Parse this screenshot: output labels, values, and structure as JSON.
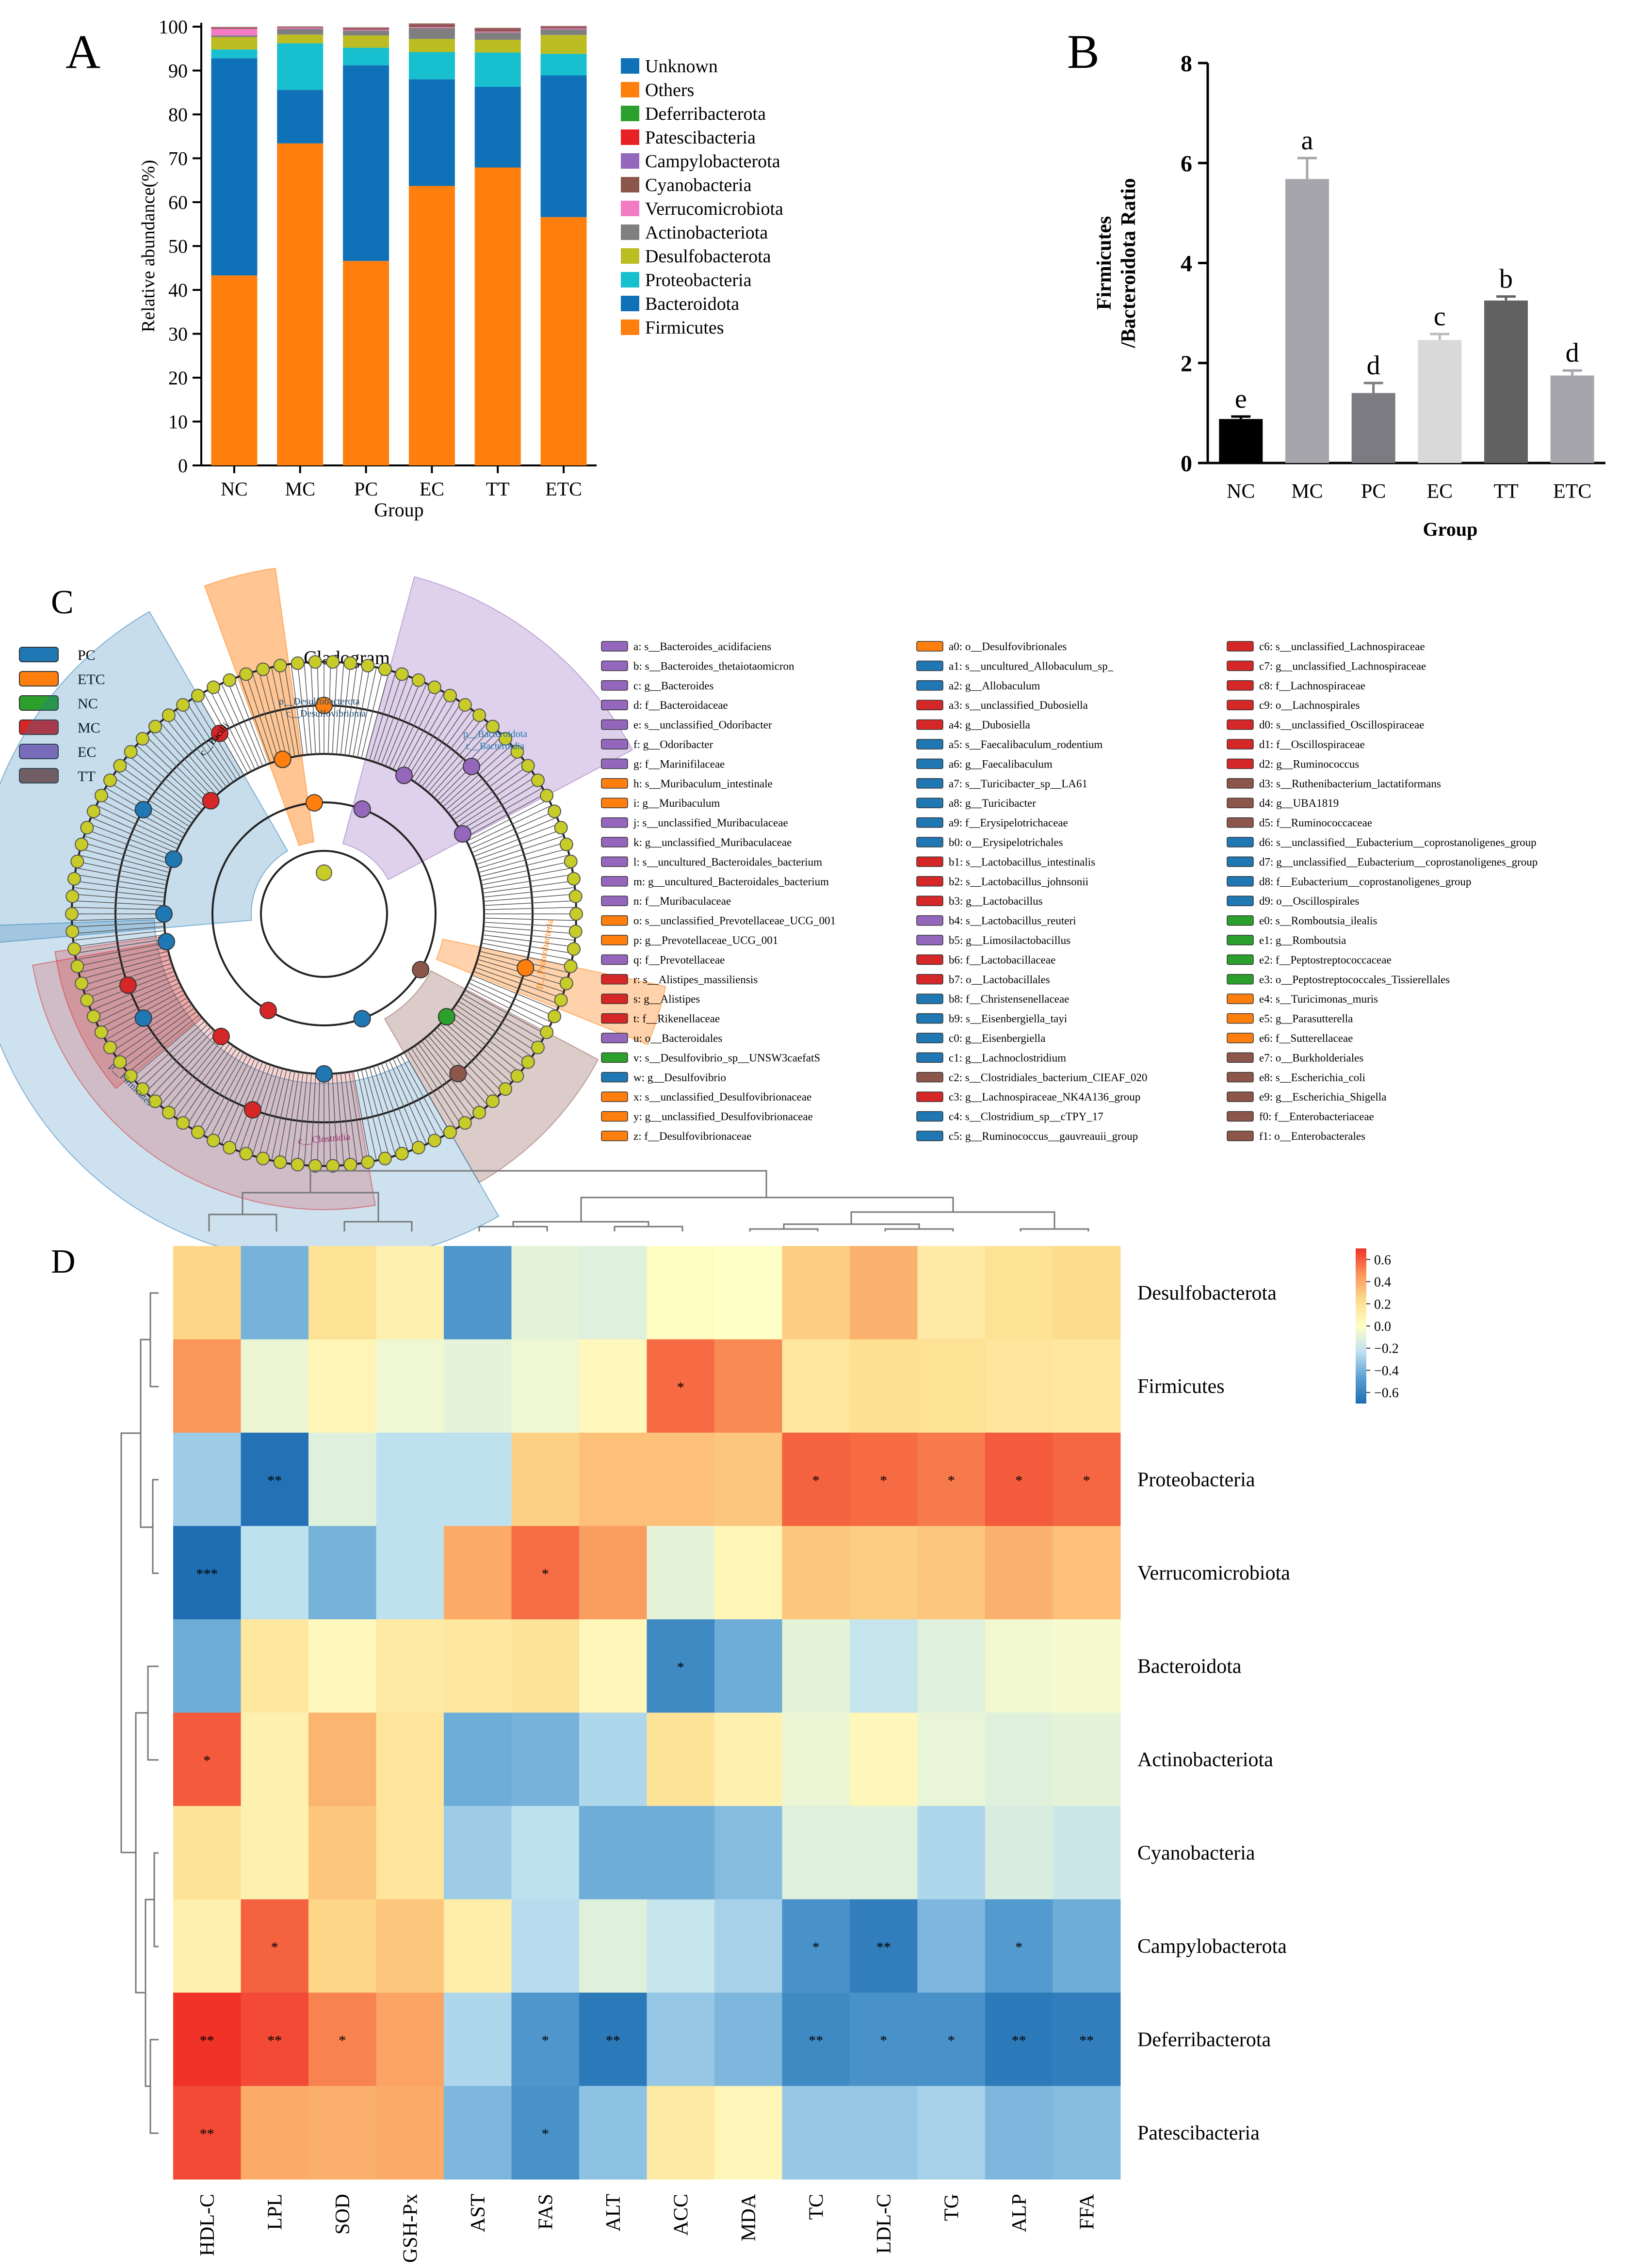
{
  "panels": {
    "A": "A",
    "B": "B",
    "C": "C",
    "D": "D"
  },
  "chart_data": [
    {
      "panel": "A",
      "type": "bar",
      "stacked": true,
      "xlabel": "Group",
      "ylabel": "Relative abundance(%)",
      "ylim": [
        0,
        100
      ],
      "yticks": [
        0,
        10,
        20,
        30,
        40,
        50,
        60,
        70,
        80,
        90,
        100
      ],
      "categories": [
        "NC",
        "MC",
        "PC",
        "EC",
        "TT",
        "ETC"
      ],
      "legend_position": "right",
      "series": [
        {
          "name": "Firmicutes",
          "color": "#ff7f0e",
          "values": [
            43.3,
            73.4,
            46.6,
            63.7,
            67.9,
            56.6
          ]
        },
        {
          "name": "Bacteroidota",
          "color": "#0f72b8",
          "values": [
            49.5,
            12.2,
            44.6,
            24.3,
            18.4,
            32.3
          ]
        },
        {
          "name": "Proteobacteria",
          "color": "#17bfcf",
          "values": [
            2.0,
            10.6,
            4.0,
            6.2,
            7.8,
            4.9
          ]
        },
        {
          "name": "Desulfobacterota",
          "color": "#bcbd22",
          "values": [
            2.8,
            2.0,
            2.8,
            3.0,
            2.9,
            4.3
          ]
        },
        {
          "name": "Actinobacteriota",
          "color": "#7f7f7f",
          "values": [
            0.4,
            1.3,
            1.1,
            2.5,
            1.7,
            1.3
          ]
        },
        {
          "name": "Verrucomicrobiota",
          "color": "#f27bc4",
          "values": [
            1.5,
            0.2,
            0.2,
            0.2,
            0.2,
            0.2
          ]
        },
        {
          "name": "Cyanobacteria",
          "color": "#8c564b",
          "values": [
            0.2,
            0.1,
            0.3,
            0.6,
            0.6,
            0.3
          ]
        },
        {
          "name": "Campylobacterota",
          "color": "#9467bd",
          "values": [
            0.1,
            0.1,
            0.1,
            0.1,
            0.1,
            0.1
          ]
        },
        {
          "name": "Patescibacteria",
          "color": "#e82127",
          "values": [
            0.1,
            0.1,
            0.1,
            0.1,
            0.1,
            0.1
          ]
        },
        {
          "name": "Deferribacterota",
          "color": "#2ca02c",
          "values": [
            0.05,
            0.05,
            0.05,
            0.05,
            0.05,
            0.05
          ]
        },
        {
          "name": "Others",
          "color": "#ff7f0e",
          "values": [
            0.0,
            0.0,
            0.0,
            0.0,
            0.0,
            0.0
          ]
        },
        {
          "name": "Unknown",
          "color": "#0f72b8",
          "values": [
            0.0,
            0.0,
            0.0,
            0.0,
            0.0,
            0.0
          ]
        }
      ],
      "legend_order": [
        "Unknown",
        "Others",
        "Deferribacterota",
        "Patescibacteria",
        "Campylobacterota",
        "Cyanobacteria",
        "Verrucomicrobiota",
        "Actinobacteriota",
        "Desulfobacterota",
        "Proteobacteria",
        "Bacteroidota",
        "Firmicutes"
      ]
    },
    {
      "panel": "B",
      "type": "bar",
      "xlabel": "Group",
      "ylabel_lines": [
        "Firmicutes",
        "/Bacteroidota Ratio"
      ],
      "ylim": [
        0,
        8
      ],
      "yticks": [
        0,
        2,
        4,
        6,
        8
      ],
      "categories": [
        "NC",
        "MC",
        "PC",
        "EC",
        "TT",
        "ETC"
      ],
      "values": [
        0.88,
        5.68,
        1.4,
        2.46,
        3.25,
        1.75
      ],
      "errors": [
        0.05,
        0.42,
        0.2,
        0.12,
        0.08,
        0.1
      ],
      "letters": [
        "e",
        "a",
        "d",
        "c",
        "b",
        "d"
      ],
      "colors": [
        "#000000",
        "#a5a5ab",
        "#7b7b81",
        "#d9d9d9",
        "#616161",
        "#a5a5ab"
      ]
    },
    {
      "panel": "C",
      "type": "cladogram",
      "title": "Cladogram",
      "groups": [
        {
          "name": "PC",
          "color": "#1f77b4"
        },
        {
          "name": "ETC",
          "color": "#ff7f0e"
        },
        {
          "name": "NC",
          "color": "#2ca02c"
        },
        {
          "name": "MC",
          "color": "#d62728"
        },
        {
          "name": "EC",
          "color": "#9467bd"
        },
        {
          "name": "TT",
          "color": "#8c564b"
        }
      ],
      "arc_labels": [
        "p__Desulfobacterota",
        "c__Desulfovibrionia",
        "p__Bacteroidota",
        "c__Bacteroidia",
        "c__Bacilli",
        "p__Firmicutes",
        "c__Clostridia",
        "p__Proteobacteria"
      ],
      "features": [
        [
          "a: s__Bacteroides_acidifaciens",
          "EC"
        ],
        [
          "b: s__Bacteroides_thetaiotaomicron",
          "EC"
        ],
        [
          "c: g__Bacteroides",
          "EC"
        ],
        [
          "d: f__Bacteroidaceae",
          "EC"
        ],
        [
          "e: s__unclassified_Odoribacter",
          "EC"
        ],
        [
          "f: g__Odoribacter",
          "EC"
        ],
        [
          "g: f__Marinifilaceae",
          "EC"
        ],
        [
          "h: s__Muribaculum_intestinale",
          "ETC"
        ],
        [
          "i: g__Muribaculum",
          "ETC"
        ],
        [
          "j: s__unclassified_Muribaculaceae",
          "EC"
        ],
        [
          "k: g__unclassified_Muribaculaceae",
          "EC"
        ],
        [
          "l: s__uncultured_Bacteroidales_bacterium",
          "EC"
        ],
        [
          "m: g__uncultured_Bacteroidales_bacterium",
          "EC"
        ],
        [
          "n: f__Muribaculaceae",
          "EC"
        ],
        [
          "o: s__unclassified_Prevotellaceae_UCG_001",
          "ETC"
        ],
        [
          "p: g__Prevotellaceae_UCG_001",
          "ETC"
        ],
        [
          "q: f__Prevotellaceae",
          "EC"
        ],
        [
          "r: s__Alistipes_massiliensis",
          "MC"
        ],
        [
          "s: g__Alistipes",
          "MC"
        ],
        [
          "t: f__Rikenellaceae",
          "MC"
        ],
        [
          "u: o__Bacteroidales",
          "EC"
        ],
        [
          "v: s__Desulfovibrio_sp__UNSW3caefatS",
          "NC"
        ],
        [
          "w: g__Desulfovibrio",
          "PC"
        ],
        [
          "x: s__unclassified_Desulfovibrionaceae",
          "ETC"
        ],
        [
          "y: g__unclassified_Desulfovibrionaceae",
          "ETC"
        ],
        [
          "z: f__Desulfovibrionaceae",
          "ETC"
        ],
        [
          "a0: o__Desulfovibrionales",
          "ETC"
        ],
        [
          "a1: s__uncultured_Allobaculum_sp_",
          "PC"
        ],
        [
          "a2: g__Allobaculum",
          "PC"
        ],
        [
          "a3: s__unclassified_Dubosiella",
          "MC"
        ],
        [
          "a4: g__Dubosiella",
          "MC"
        ],
        [
          "a5: s__Faecalibaculum_rodentium",
          "PC"
        ],
        [
          "a6: g__Faecalibaculum",
          "PC"
        ],
        [
          "a7: s__Turicibacter_sp__LA61",
          "PC"
        ],
        [
          "a8: g__Turicibacter",
          "PC"
        ],
        [
          "a9: f__Erysipelotrichaceae",
          "PC"
        ],
        [
          "b0: o__Erysipelotrichales",
          "PC"
        ],
        [
          "b1: s__Lactobacillus_intestinalis",
          "MC"
        ],
        [
          "b2: s__Lactobacillus_johnsonii",
          "MC"
        ],
        [
          "b3: g__Lactobacillus",
          "MC"
        ],
        [
          "b4: s__Lactobacillus_reuteri",
          "EC"
        ],
        [
          "b5: g__Limosilactobacillus",
          "EC"
        ],
        [
          "b6: f__Lactobacillaceae",
          "MC"
        ],
        [
          "b7: o__Lactobacillales",
          "MC"
        ],
        [
          "b8: f__Christensenellaceae",
          "PC"
        ],
        [
          "b9: s__Eisenbergiella_tayi",
          "PC"
        ],
        [
          "c0: g__Eisenbergiella",
          "PC"
        ],
        [
          "c1: g__Lachnoclostridium",
          "PC"
        ],
        [
          "c2: s__Clostridiales_bacterium_CIEAF_020",
          "TT"
        ],
        [
          "c3: g__Lachnospiraceae_NK4A136_group",
          "MC"
        ],
        [
          "c4: s__Clostridium_sp__cTPY_17",
          "PC"
        ],
        [
          "c5: g__Ruminococcus__gauvreauii_group",
          "PC"
        ],
        [
          "c6: s__unclassified_Lachnospiraceae",
          "MC"
        ],
        [
          "c7: g__unclassified_Lachnospiraceae",
          "MC"
        ],
        [
          "c8: f__Lachnospiraceae",
          "MC"
        ],
        [
          "c9: o__Lachnospirales",
          "MC"
        ],
        [
          "d0: s__unclassified_Oscillospiraceae",
          "MC"
        ],
        [
          "d1: f__Oscillospiraceae",
          "MC"
        ],
        [
          "d2: g__Ruminococcus",
          "MC"
        ],
        [
          "d3: s__Ruthenibacterium_lactatiformans",
          "TT"
        ],
        [
          "d4: g__UBA1819",
          "TT"
        ],
        [
          "d5: f__Ruminococcaceae",
          "TT"
        ],
        [
          "d6: s__unclassified__Eubacterium__coprostanoligenes_group",
          "PC"
        ],
        [
          "d7: g__unclassified__Eubacterium__coprostanoligenes_group",
          "PC"
        ],
        [
          "d8: f__Eubacterium__coprostanoligenes_group",
          "PC"
        ],
        [
          "d9: o__Oscillospirales",
          "PC"
        ],
        [
          "e0: s__Romboutsia_ilealis",
          "NC"
        ],
        [
          "e1: g__Romboutsia",
          "NC"
        ],
        [
          "e2: f__Peptostreptococcaceae",
          "NC"
        ],
        [
          "e3: o__Peptostreptococcales_Tissierellales",
          "NC"
        ],
        [
          "e4: s__Turicimonas_muris",
          "ETC"
        ],
        [
          "e5: g__Parasutterella",
          "ETC"
        ],
        [
          "e6: f__Sutterellaceae",
          "ETC"
        ],
        [
          "e7: o__Burkholderiales",
          "TT"
        ],
        [
          "e8: s__Escherichia_coli",
          "TT"
        ],
        [
          "e9: g__Escherichia_Shigella",
          "TT"
        ],
        [
          "f0: f__Enterobacteriaceae",
          "TT"
        ],
        [
          "f1: o__Enterobacterales",
          "TT"
        ]
      ]
    },
    {
      "panel": "D",
      "type": "heatmap",
      "colorbar_ticks": [
        0.6,
        0.4,
        0.2,
        0.0,
        -0.2,
        -0.4,
        -0.6
      ],
      "vrange": [
        -0.7,
        0.7
      ],
      "columns": [
        "HDL-C",
        "LPL",
        "SOD",
        "GSH-Px",
        "AST",
        "FAS",
        "ALT",
        "ACC",
        "MDA",
        "TC",
        "LDL-C",
        "TG",
        "ALP",
        "FFA"
      ],
      "rows": [
        "Desulfobacterota",
        "Firmicutes",
        "Proteobacteria",
        "Verrucomicrobiota",
        "Bacteroidota",
        "Actinobacteriota",
        "Cyanobacteria",
        "Campylobacterota",
        "Deferribacterota",
        "Patescibacteria"
      ],
      "values": [
        [
          0.22,
          -0.38,
          0.17,
          0.08,
          -0.5,
          -0.08,
          -0.1,
          0.02,
          0.0,
          0.25,
          0.35,
          0.12,
          0.17,
          0.2
        ],
        [
          0.45,
          -0.06,
          0.06,
          -0.05,
          -0.08,
          -0.05,
          0.04,
          0.56,
          0.48,
          0.14,
          0.18,
          0.17,
          0.15,
          0.14
        ],
        [
          -0.28,
          -0.68,
          -0.1,
          -0.2,
          -0.2,
          0.24,
          0.3,
          0.3,
          0.28,
          0.58,
          0.56,
          0.52,
          0.6,
          0.57
        ],
        [
          -0.72,
          -0.2,
          -0.38,
          -0.2,
          0.38,
          0.55,
          0.42,
          -0.08,
          0.06,
          0.28,
          0.25,
          0.28,
          0.35,
          0.3
        ],
        [
          -0.4,
          0.14,
          0.04,
          0.12,
          0.14,
          0.16,
          0.05,
          -0.56,
          -0.4,
          -0.08,
          -0.18,
          -0.1,
          -0.04,
          -0.03
        ],
        [
          0.6,
          0.08,
          0.34,
          0.15,
          -0.4,
          -0.38,
          -0.24,
          0.16,
          0.08,
          -0.06,
          0.05,
          -0.07,
          -0.1,
          -0.08
        ],
        [
          0.16,
          0.08,
          0.28,
          0.15,
          -0.28,
          -0.2,
          -0.4,
          -0.4,
          -0.34,
          -0.1,
          -0.1,
          -0.24,
          -0.12,
          -0.16
        ],
        [
          0.08,
          0.58,
          0.22,
          0.28,
          0.1,
          -0.22,
          -0.1,
          -0.18,
          -0.26,
          -0.52,
          -0.62,
          -0.36,
          -0.48,
          -0.4
        ],
        [
          0.72,
          0.64,
          0.5,
          0.4,
          -0.24,
          -0.5,
          -0.64,
          -0.3,
          -0.36,
          -0.56,
          -0.52,
          -0.52,
          -0.64,
          -0.62
        ],
        [
          0.64,
          0.38,
          0.36,
          0.38,
          -0.36,
          -0.52,
          -0.32,
          0.12,
          0.05,
          -0.3,
          -0.3,
          -0.26,
          -0.36,
          -0.34
        ]
      ],
      "stars": [
        [
          "",
          "",
          "",
          "",
          "",
          "",
          "",
          "",
          "",
          "",
          "",
          "",
          "",
          ""
        ],
        [
          "",
          "",
          "",
          "",
          "",
          "",
          "",
          "*",
          "",
          "",
          "",
          "",
          "",
          ""
        ],
        [
          "",
          "**",
          "",
          "",
          "",
          "",
          "",
          "",
          "",
          "*",
          "*",
          "*",
          "*",
          "*"
        ],
        [
          "***",
          "",
          "",
          "",
          "",
          "*",
          "",
          "",
          "",
          "",
          "",
          "",
          "",
          ""
        ],
        [
          "",
          "",
          "",
          "",
          "",
          "",
          "",
          "*",
          "",
          "",
          "",
          "",
          "",
          ""
        ],
        [
          "*",
          "",
          "",
          "",
          "",
          "",
          "",
          "",
          "",
          "",
          "",
          "",
          "",
          ""
        ],
        [
          "",
          "",
          "",
          "",
          "",
          "",
          "",
          "",
          "",
          "",
          "",
          "",
          "",
          ""
        ],
        [
          "",
          "*",
          "",
          "",
          "",
          "",
          "",
          "",
          "",
          "*",
          "**",
          "",
          "*",
          ""
        ],
        [
          "**",
          "**",
          "*",
          "",
          "",
          "*",
          "**",
          "",
          "",
          "**",
          "*",
          "*",
          "**",
          "**"
        ],
        [
          "**",
          "",
          "",
          "",
          "",
          "*",
          "",
          "",
          "",
          "",
          "",
          "",
          "",
          ""
        ]
      ]
    }
  ]
}
